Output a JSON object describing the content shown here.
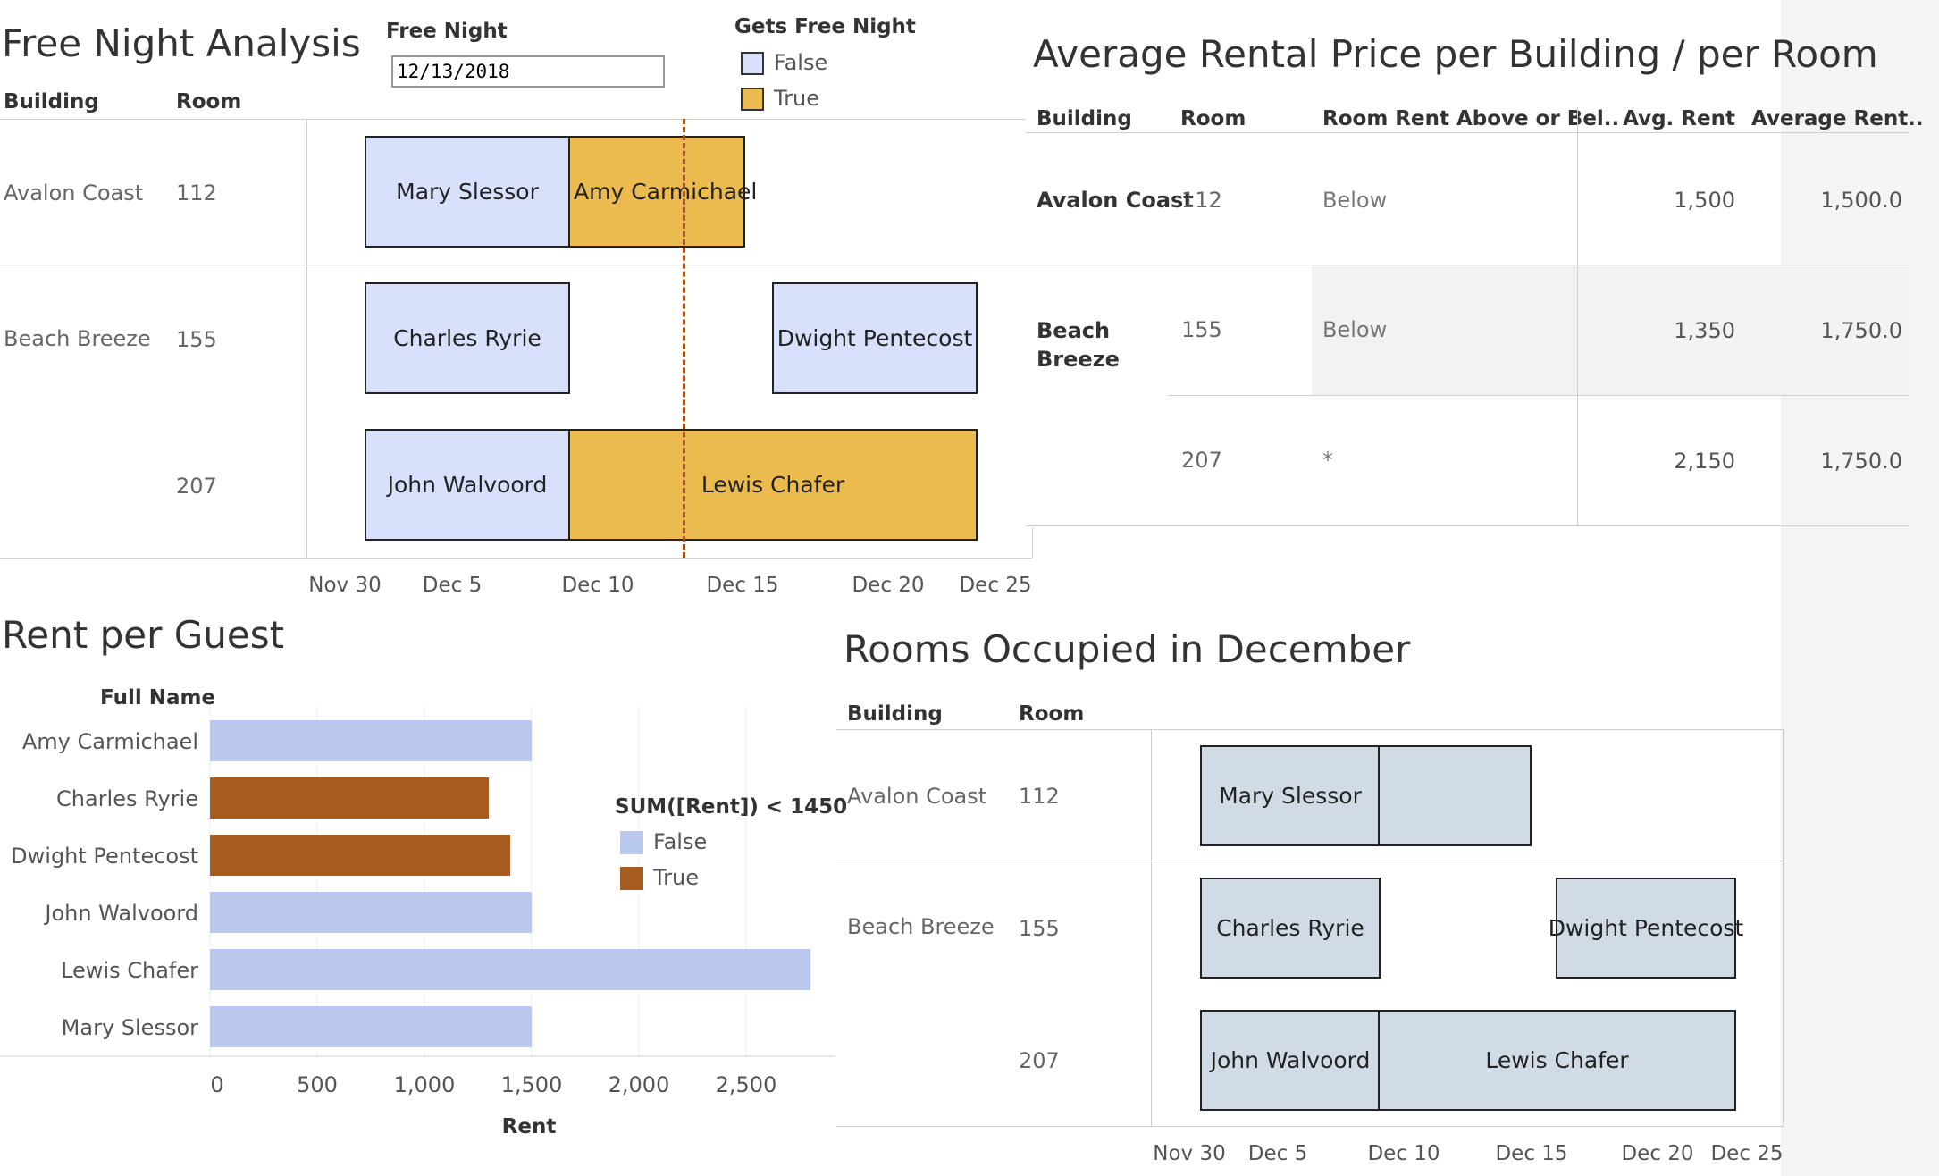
{
  "free_night": {
    "title": "Free Night Analysis",
    "filter_label": "Free Night",
    "filter_value": "12/13/2018",
    "legend_title": "Gets Free Night",
    "legend_false": "False",
    "legend_true": "True",
    "col_building": "Building",
    "col_room": "Room",
    "rows": [
      {
        "building": "Avalon Coast",
        "room": "112"
      },
      {
        "building": "Beach Breeze",
        "room": "155"
      },
      {
        "building": "",
        "room": "207"
      }
    ],
    "bars": {
      "mary": "Mary Slessor",
      "amy": "Amy Carmichael",
      "charles": "Charles Ryrie",
      "dwight": "Dwight Pentecost",
      "john": "John Walvoord",
      "lewis": "Lewis Chafer"
    },
    "ticks": [
      "Nov 30",
      "Dec 5",
      "Dec 10",
      "Dec 15",
      "Dec 20",
      "Dec 25"
    ],
    "colors": {
      "false": "#d8e0fb",
      "true": "#ebbb4f",
      "reference_line": "#a0521b"
    }
  },
  "avg_rent": {
    "title": "Average Rental Price per Building / per Room",
    "col_building": "Building",
    "col_room": "Room",
    "col_above_below": "Room Rent Above or Bel..",
    "col_avg": "Avg. Rent",
    "col_avg_building": "Average Rent..",
    "rows": [
      {
        "building": "Avalon Coast",
        "room": "112",
        "above_below": "Below",
        "avg": "1,500",
        "avg_building": "1,500.0"
      },
      {
        "building": "Beach Breeze",
        "room": "155",
        "above_below": "Below",
        "avg": "1,350",
        "avg_building": "1,750.0"
      },
      {
        "building": "",
        "room": "207",
        "above_below": "*",
        "avg": "2,150",
        "avg_building": "1,750.0"
      }
    ]
  },
  "rent_guest": {
    "title": "Rent per Guest",
    "axis_header": "Full Name",
    "axis_title": "Rent",
    "legend_title": "SUM([Rent]) < 1450",
    "legend_false": "False",
    "legend_true": "True",
    "ticks": [
      "0",
      "500",
      "1,000",
      "1,500",
      "2,000",
      "2,500"
    ],
    "colors": {
      "false": "#b9c8ec",
      "true": "#a65c1e"
    }
  },
  "occupied": {
    "title": "Rooms Occupied in December",
    "col_building": "Building",
    "col_room": "Room",
    "rows": [
      {
        "building": "Avalon Coast",
        "room": "112"
      },
      {
        "building": "Beach Breeze",
        "room": "155"
      },
      {
        "building": "",
        "room": "207"
      }
    ],
    "bars": {
      "mary": "Mary Slessor",
      "amy": "",
      "charles": "Charles Ryrie",
      "dwight": "Dwight Pentecost",
      "john": "John Walvoord",
      "lewis": "Lewis Chafer"
    },
    "ticks": [
      "Nov 30",
      "Dec 5",
      "Dec 10",
      "Dec 15",
      "Dec 20",
      "Dec 25"
    ]
  },
  "chart_data": {
    "type": "bar",
    "title": "Rent per Guest",
    "xlabel": "Rent",
    "ylabel": "Full Name",
    "categories": [
      "Amy Carmichael",
      "Charles Ryrie",
      "Dwight Pentecost",
      "John Walvoord",
      "Lewis Chafer",
      "Mary Slessor"
    ],
    "values": [
      1500,
      1300,
      1400,
      1500,
      2800,
      1500
    ],
    "highlight": [
      false,
      true,
      true,
      false,
      false,
      false
    ],
    "xlim": [
      0,
      2800
    ],
    "legend": "right"
  }
}
